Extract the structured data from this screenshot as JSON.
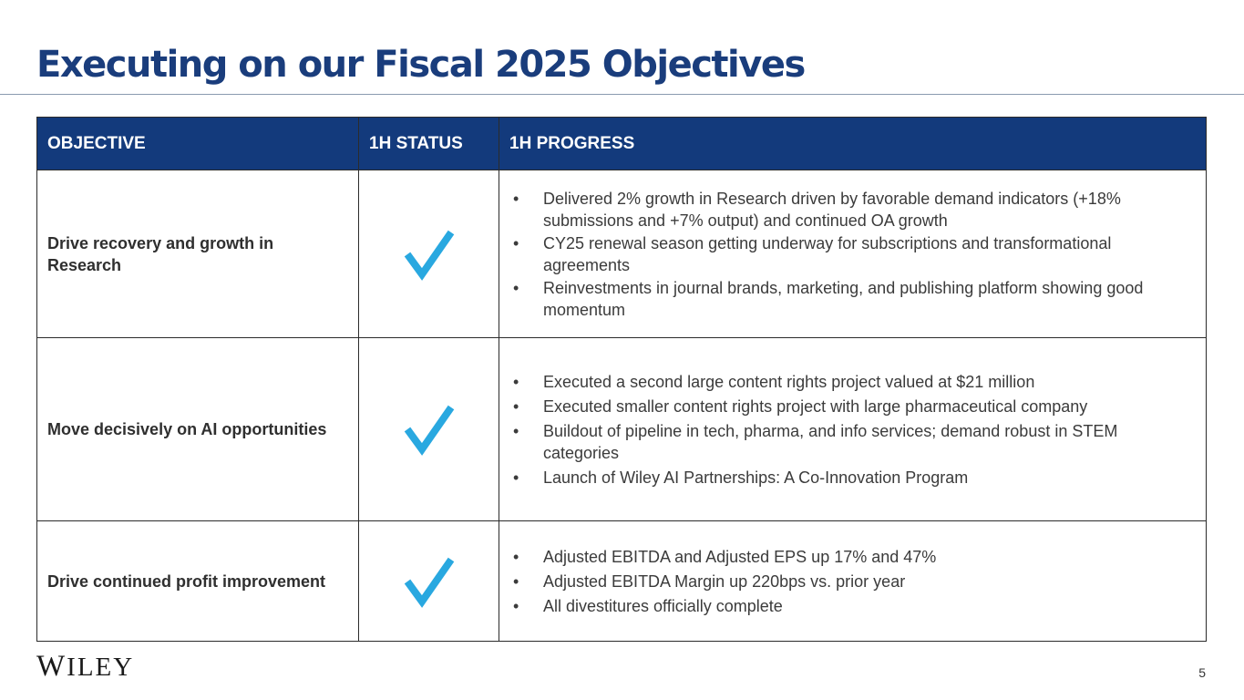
{
  "slide": {
    "title": "Executing on our Fiscal 2025 Objectives",
    "page_number": "5",
    "logo_text": "WILEY"
  },
  "table": {
    "headers": [
      "OBJECTIVE",
      "1H STATUS",
      "1H PROGRESS"
    ],
    "rows": [
      {
        "objective": "Drive recovery and growth in Research",
        "status": "check-icon",
        "progress": [
          "Delivered 2% growth in Research driven by favorable demand indicators (+18% submissions and +7% output) and continued OA growth",
          "CY25 renewal season getting underway for subscriptions and transformational agreements",
          "Reinvestments in journal brands, marketing, and publishing platform showing good momentum"
        ]
      },
      {
        "objective": "Move decisively on AI opportunities",
        "status": "check-icon",
        "progress": [
          "Executed a second large content rights project valued at $21 million",
          "Executed smaller content rights project with large pharmaceutical company",
          "Buildout of pipeline in tech, pharma, and info services; demand robust in STEM categories",
          "Launch of Wiley AI Partnerships: A Co-Innovation Program"
        ]
      },
      {
        "objective": "Drive continued profit improvement",
        "status": "check-icon",
        "progress": [
          "Adjusted EBITDA and Adjusted EPS up 17% and 47%",
          "Adjusted EBITDA Margin up 220bps vs. prior year",
          "All divestitures officially complete"
        ]
      }
    ]
  },
  "colors": {
    "title": "#1a3d7c",
    "header_bg": "#133a7c",
    "check": "#29a8e0"
  }
}
